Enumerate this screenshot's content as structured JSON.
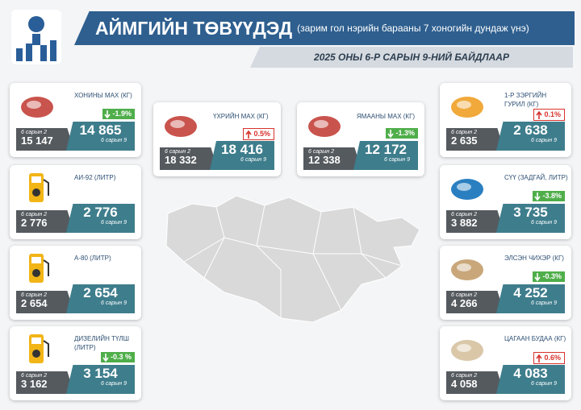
{
  "header": {
    "title": "АЙМГИЙН ТӨВҮҮДЭД",
    "subtitle": "(зарим гол нэрийн барааны 7 хоногийн дундаж үнэ)",
    "date": "2025 ОНЫ 6-Р САРЫН 9-НИЙ БАЙДЛААР"
  },
  "labels": {
    "previous": "6 сарын 2",
    "current": "6 сарын 9"
  },
  "items": [
    {
      "name": "ХОНИНЫ МАХ (КГ)",
      "previous": "15 147",
      "current": "14 865",
      "change": "-1.9%"
    },
    {
      "name": "АИ-92 (ЛИТР)",
      "previous": "2 776",
      "current": "2 776"
    },
    {
      "name": "А-80 (ЛИТР)",
      "previous": "2 654",
      "current": "2 654"
    },
    {
      "name": "ДИЗЕЛИЙН ТҮЛШ (ЛИТР)",
      "previous": "3 162",
      "current": "3 154",
      "change": "-0.3 %"
    },
    {
      "name": "ҮХРИЙН МАХ (КГ)",
      "previous": "18 332",
      "current": "18 416",
      "change": "0.5%"
    },
    {
      "name": "ЯМААНЫ МАХ (КГ)",
      "previous": "12 338",
      "current": "12 172",
      "change": "-1.3%"
    },
    {
      "name": "1-Р ЗЭРГИЙН ГУРИЛ (КГ)",
      "previous": "2 635",
      "current": "2 638",
      "change": "0.1%"
    },
    {
      "name": "СҮҮ (ЗАДГАЙ, ЛИТР)",
      "previous": "3 882",
      "current": "3 735",
      "change": "-3.8%"
    },
    {
      "name": "ЭЛСЭН ЧИХЭР (КГ)",
      "previous": "4 266",
      "current": "4 252",
      "change": "-0.3%"
    },
    {
      "name": "ЦАГААН БУДАА (КГ)",
      "previous": "4 058",
      "current": "4 083",
      "change": "0.6%"
    }
  ]
}
